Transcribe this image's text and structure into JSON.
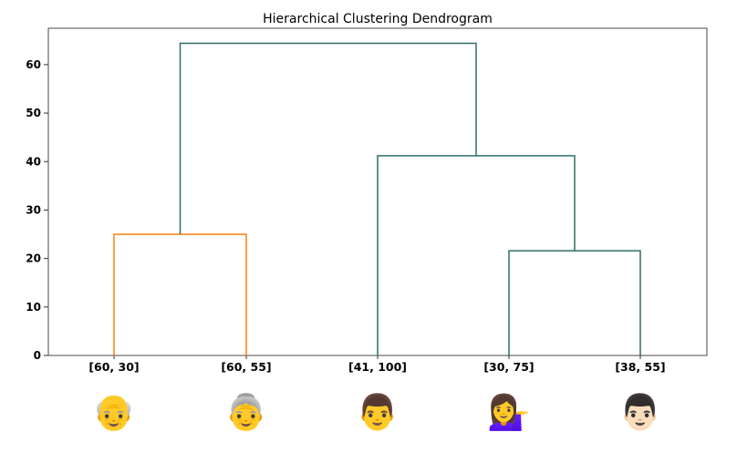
{
  "chart_data": {
    "type": "dendrogram",
    "title": "Hierarchical Clustering Dendrogram",
    "xlabel": "",
    "ylabel": "",
    "ylim": [
      0,
      67.5
    ],
    "yticks": [
      0,
      10,
      20,
      30,
      40,
      50,
      60
    ],
    "grid": false,
    "leaves": [
      {
        "label": "[60, 30]",
        "emoji": "👴",
        "icon": "old-man-icon"
      },
      {
        "label": "[60, 55]",
        "emoji": "👵",
        "icon": "old-woman-icon"
      },
      {
        "label": "[41, 100]",
        "emoji": "👨",
        "icon": "man-icon"
      },
      {
        "label": "[30, 75]",
        "emoji": "💁‍♀️",
        "icon": "woman-tipping-hand-icon"
      },
      {
        "label": "[38, 55]",
        "emoji": "👨🏻",
        "icon": "man-light-skin-icon"
      }
    ],
    "links": [
      {
        "left": 0,
        "right": 1,
        "height": 25.0,
        "color": "#ff7f0e"
      },
      {
        "left": 3,
        "right": 4,
        "height": 21.6,
        "color": "#2f6f66"
      },
      {
        "left": 2,
        "right": "c1",
        "height": 41.2,
        "color": "#2f6f66"
      },
      {
        "left": "c0",
        "right": "c2",
        "height": 64.4,
        "color": "#2f6f66"
      }
    ]
  }
}
